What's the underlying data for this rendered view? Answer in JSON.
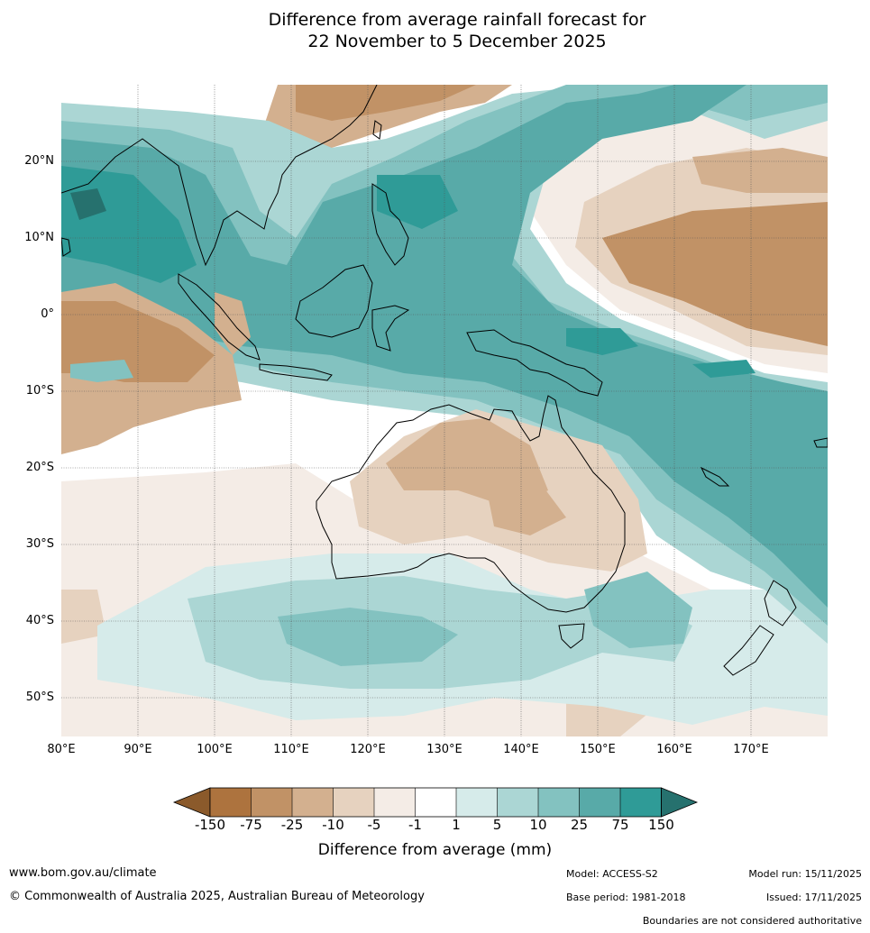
{
  "title": {
    "line1": "Difference from average rainfall forecast for",
    "line2": "22 November to 5 December 2025"
  },
  "map": {
    "projection": "equirectangular",
    "lon_range": [
      80,
      180
    ],
    "lat_range": [
      -55,
      30
    ],
    "lat_ticks": [
      {
        "value": 20,
        "label": "20°N"
      },
      {
        "value": 10,
        "label": "10°N"
      },
      {
        "value": 0,
        "label": "0°"
      },
      {
        "value": -10,
        "label": "10°S"
      },
      {
        "value": -20,
        "label": "20°S"
      },
      {
        "value": -30,
        "label": "30°S"
      },
      {
        "value": -40,
        "label": "40°S"
      },
      {
        "value": -50,
        "label": "50°S"
      }
    ],
    "lon_ticks": [
      {
        "value": 80,
        "label": "80°E"
      },
      {
        "value": 90,
        "label": "90°E"
      },
      {
        "value": 100,
        "label": "100°E"
      },
      {
        "value": 110,
        "label": "110°E"
      },
      {
        "value": 120,
        "label": "120°E"
      },
      {
        "value": 130,
        "label": "130°E"
      },
      {
        "value": 140,
        "label": "140°E"
      },
      {
        "value": 150,
        "label": "150°E"
      },
      {
        "value": 160,
        "label": "160°E"
      },
      {
        "value": 170,
        "label": "170°E"
      }
    ]
  },
  "colorbar": {
    "title": "Difference from average (mm)",
    "tick_labels": [
      "-150",
      "-75",
      "-25",
      "-10",
      "-5",
      "-1",
      "1",
      "5",
      "10",
      "25",
      "75",
      "150"
    ],
    "colors": {
      "lt_-150": "#8b5a2b",
      "-150_-75": "#ad733e",
      "-75_-25": "#c19266",
      "-25_-10": "#d3b08f",
      "-10_-5": "#e6d2bf",
      "-5_-1": "#f4ece6",
      "-1_1": "#ffffff",
      "1_5": "#d6ebea",
      "5_10": "#abd6d4",
      "10_25": "#83c2c0",
      "25_75": "#58aaa8",
      "75_150": "#2f9b97",
      "gt_150": "#26716e"
    }
  },
  "footer": {
    "website": "www.bom.gov.au/climate",
    "copyright": "© Commonwealth of Australia 2025, Australian Bureau of Meteorology",
    "model": "Model: ACCESS-S2",
    "base_period": "Base period: 1981-2018",
    "model_run": "Model run: 15/11/2025",
    "issued": "Issued: 17/11/2025",
    "disclaimer": "Boundaries are not considered authoritative"
  }
}
